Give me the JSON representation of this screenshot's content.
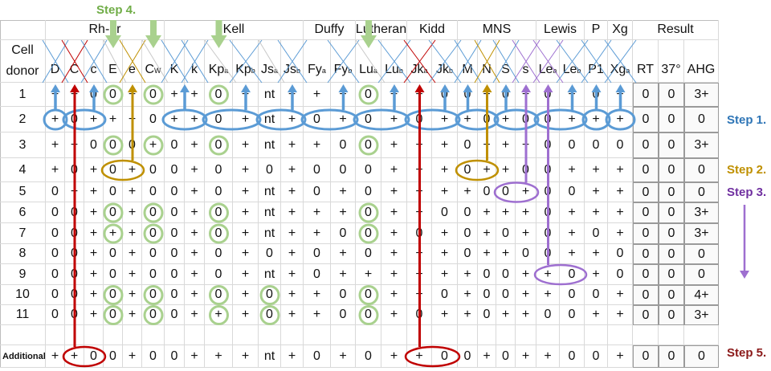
{
  "steps": [
    {
      "label": "Step 4.",
      "color": "#70ad47"
    },
    {
      "label": "Step 1.",
      "color": "#2e75b6"
    },
    {
      "label": "Step 2.",
      "color": "#bf9000"
    },
    {
      "label": "Step 3.",
      "color": "#7030a0"
    },
    {
      "label": "Step 5.",
      "color": "#8b1a1a"
    }
  ],
  "colors": {
    "blue": "#5b9bd5",
    "green": "#a9d18e",
    "gold": "#bf9000",
    "purple": "#9e6fd0",
    "red": "#c00000",
    "grey": "#c8c8c8"
  },
  "donor_header": [
    "Cell",
    "donor"
  ],
  "groups": [
    {
      "label": "Rh-hr",
      "from": 0,
      "to": 5
    },
    {
      "label": "Kell",
      "from": 6,
      "to": 11
    },
    {
      "label": "Duffy",
      "from": 12,
      "to": 13
    },
    {
      "label": "Lutheran",
      "from": 14,
      "to": 15
    },
    {
      "label": "Kidd",
      "from": 16,
      "to": 17
    },
    {
      "label": "MNS",
      "from": 18,
      "to": 21
    },
    {
      "label": "Lewis",
      "from": 22,
      "to": 23
    },
    {
      "label": "P",
      "from": 24,
      "to": 24
    },
    {
      "label": "Xg",
      "from": 25,
      "to": 25
    },
    {
      "label": "Result",
      "from": 26,
      "to": 28
    }
  ],
  "antigens": [
    {
      "base": "D",
      "sup": "",
      "cross": "blue"
    },
    {
      "base": "C",
      "sup": "",
      "cross": "red"
    },
    {
      "base": "c",
      "sup": "",
      "cross": "blue"
    },
    {
      "base": "E",
      "sup": "",
      "cross": "grey"
    },
    {
      "base": "e",
      "sup": "",
      "cross": "gold"
    },
    {
      "base": "C",
      "sup": "W",
      "cross": "grey"
    },
    {
      "base": "K",
      "sup": "",
      "cross": "blue"
    },
    {
      "base": "k",
      "sup": "",
      "cross": "blue"
    },
    {
      "base": "Kp",
      "sup": "a",
      "cross": "grey"
    },
    {
      "base": "Kp",
      "sup": "b",
      "cross": "blue"
    },
    {
      "base": "Js",
      "sup": "a",
      "cross": "grey"
    },
    {
      "base": "Js",
      "sup": "b",
      "cross": "blue"
    },
    {
      "base": "Fy",
      "sup": "a",
      "cross": ""
    },
    {
      "base": "Fy",
      "sup": "b",
      "cross": "blue"
    },
    {
      "base": "Lu",
      "sup": "a",
      "cross": "grey"
    },
    {
      "base": "Lu",
      "sup": "b",
      "cross": "blue"
    },
    {
      "base": "Jk",
      "sup": "a",
      "cross": "red"
    },
    {
      "base": "Jk",
      "sup": "b",
      "cross": "blue"
    },
    {
      "base": "M",
      "sup": "",
      "cross": "blue"
    },
    {
      "base": "N",
      "sup": "",
      "cross": "gold"
    },
    {
      "base": "S",
      "sup": "",
      "cross": "blue"
    },
    {
      "base": "s",
      "sup": "",
      "cross": "purple"
    },
    {
      "base": "Le",
      "sup": "a",
      "cross": "purple"
    },
    {
      "base": "Le",
      "sup": "b",
      "cross": "blue"
    },
    {
      "base": "P1",
      "sup": "",
      "cross": "blue"
    },
    {
      "base": "Xg",
      "sup": "a",
      "cross": "blue"
    }
  ],
  "result_headers": [
    "RT",
    "37°",
    "AHG"
  ],
  "rows": [
    {
      "donor": "1",
      "cells": [
        "+",
        "+",
        "0",
        "0",
        "+",
        "0",
        "+",
        "+",
        "0",
        "+",
        "nt",
        "+",
        "+",
        "+",
        "0",
        "+",
        "+",
        "0",
        "0",
        "+",
        "0",
        "+",
        "0",
        "+",
        "0",
        "+"
      ],
      "results": [
        "0",
        "0",
        "3+"
      ]
    },
    {
      "donor": "2",
      "cells": [
        "+",
        "0",
        "+",
        "+",
        "+",
        "0",
        "+",
        "+",
        "0",
        "+",
        "nt",
        "+",
        "0",
        "+",
        "0",
        "+",
        "0",
        "+",
        "+",
        "0",
        "+",
        "0",
        "0",
        "+",
        "+",
        "+"
      ],
      "results": [
        "0",
        "0",
        "0"
      ]
    },
    {
      "donor": "3",
      "cells": [
        "+",
        "+",
        "0",
        "0",
        "0",
        "+",
        "0",
        "+",
        "0",
        "+",
        "nt",
        "+",
        "+",
        "0",
        "0",
        "+",
        "+",
        "+",
        "0",
        "+",
        "+",
        "+",
        "0",
        "0",
        "0",
        "0"
      ],
      "results": [
        "0",
        "0",
        "3+"
      ]
    },
    {
      "donor": "4",
      "cells": [
        "+",
        "0",
        "+",
        "0",
        "+",
        "0",
        "0",
        "+",
        "0",
        "+",
        "0",
        "+",
        "0",
        "0",
        "0",
        "+",
        "+",
        "+",
        "0",
        "+",
        "+",
        "0",
        "0",
        "+",
        "+",
        "+"
      ],
      "results": [
        "0",
        "0",
        "0"
      ]
    },
    {
      "donor": "5",
      "cells": [
        "0",
        "+",
        "+",
        "0",
        "+",
        "0",
        "0",
        "+",
        "0",
        "+",
        "nt",
        "+",
        "0",
        "+",
        "0",
        "+",
        "+",
        "+",
        "+",
        "0",
        "0",
        "+",
        "0",
        "0",
        "+",
        "+"
      ],
      "results": [
        "0",
        "0",
        "0"
      ]
    },
    {
      "donor": "6",
      "cells": [
        "0",
        "0",
        "+",
        "0",
        "+",
        "0",
        "0",
        "+",
        "0",
        "+",
        "nt",
        "+",
        "+",
        "+",
        "0",
        "+",
        "+",
        "0",
        "0",
        "+",
        "+",
        "+",
        "0",
        "+",
        "+",
        "+"
      ],
      "results": [
        "0",
        "0",
        "3+"
      ]
    },
    {
      "donor": "7",
      "cells": [
        "0",
        "0",
        "+",
        "+",
        "+",
        "0",
        "0",
        "+",
        "0",
        "+",
        "nt",
        "+",
        "+",
        "0",
        "0",
        "+",
        "0",
        "+",
        "0",
        "+",
        "0",
        "+",
        "0",
        "+",
        "0",
        "+"
      ],
      "results": [
        "0",
        "0",
        "3+"
      ]
    },
    {
      "donor": "8",
      "cells": [
        "0",
        "0",
        "+",
        "0",
        "+",
        "0",
        "0",
        "+",
        "0",
        "+",
        "0",
        "+",
        "0",
        "+",
        "0",
        "+",
        "+",
        "+",
        "0",
        "+",
        "+",
        "0",
        "0",
        "+",
        "+",
        "0"
      ],
      "results": [
        "0",
        "0",
        "0"
      ]
    },
    {
      "donor": "9",
      "cells": [
        "0",
        "0",
        "+",
        "0",
        "+",
        "0",
        "0",
        "+",
        "0",
        "+",
        "nt",
        "+",
        "0",
        "+",
        "+",
        "+",
        "+",
        "+",
        "+",
        "0",
        "0",
        "+",
        "+",
        "0",
        "+",
        "0"
      ],
      "results": [
        "0",
        "0",
        "0"
      ]
    },
    {
      "donor": "10",
      "cells": [
        "0",
        "0",
        "+",
        "0",
        "+",
        "0",
        "0",
        "+",
        "0",
        "+",
        "0",
        "+",
        "+",
        "0",
        "0",
        "+",
        "+",
        "0",
        "+",
        "0",
        "0",
        "+",
        "+",
        "0",
        "0",
        "+"
      ],
      "results": [
        "0",
        "0",
        "4+"
      ]
    },
    {
      "donor": "11",
      "cells": [
        "0",
        "0",
        "+",
        "0",
        "+",
        "0",
        "0",
        "+",
        "+",
        "+",
        "0",
        "+",
        "+",
        "0",
        "0",
        "+",
        "0",
        "+",
        "+",
        "0",
        "+",
        "+",
        "0",
        "0",
        "+",
        "+"
      ],
      "results": [
        "0",
        "0",
        "3+"
      ]
    },
    {
      "donor": "",
      "cells": [],
      "results": []
    },
    {
      "donor": "Additional",
      "cells": [
        "+",
        "+",
        "0",
        "0",
        "+",
        "0",
        "0",
        "+",
        "+",
        "+",
        "nt",
        "+",
        "0",
        "+",
        "0",
        "+",
        "+",
        "0",
        "0",
        "+",
        "0",
        "+",
        "+",
        "0",
        "0",
        "+"
      ],
      "results": [
        "0",
        "0",
        "0"
      ]
    }
  ],
  "annotations": {
    "green_circles": [
      [
        0,
        3
      ],
      [
        0,
        5
      ],
      [
        0,
        8
      ],
      [
        0,
        14
      ],
      [
        2,
        3
      ],
      [
        2,
        5
      ],
      [
        2,
        8
      ],
      [
        2,
        14
      ],
      [
        5,
        3
      ],
      [
        5,
        5
      ],
      [
        5,
        8
      ],
      [
        5,
        14
      ],
      [
        6,
        3
      ],
      [
        6,
        5
      ],
      [
        6,
        8
      ],
      [
        6,
        14
      ],
      [
        9,
        3
      ],
      [
        9,
        5
      ],
      [
        9,
        8
      ],
      [
        9,
        10
      ],
      [
        9,
        14
      ],
      [
        10,
        3
      ],
      [
        10,
        5
      ],
      [
        10,
        8
      ],
      [
        10,
        10
      ],
      [
        10,
        14
      ]
    ],
    "green_arrows": [
      3,
      5,
      8,
      14
    ],
    "ellipses": [
      {
        "row": 1,
        "from": 0,
        "to": 0,
        "color": "blue",
        "arrow_to": [
          0
        ]
      },
      {
        "row": 1,
        "from": 1,
        "to": 2,
        "color": "blue",
        "arrow_to": [
          2
        ]
      },
      {
        "row": 1,
        "from": 6,
        "to": 7,
        "color": "blue",
        "arrow_to": [
          6.5
        ]
      },
      {
        "row": 1,
        "from": 8,
        "to": 9,
        "color": "blue",
        "arrow_to": [
          9
        ]
      },
      {
        "row": 1,
        "from": 10,
        "to": 11,
        "color": "blue",
        "arrow_to": [
          11
        ]
      },
      {
        "row": 1,
        "from": 12,
        "to": 13,
        "color": "blue",
        "arrow_to": [
          13
        ]
      },
      {
        "row": 1,
        "from": 14,
        "to": 15,
        "color": "blue",
        "arrow_to": [
          15
        ]
      },
      {
        "row": 1,
        "from": 16,
        "to": 17,
        "color": "blue",
        "arrow_to": [
          17
        ]
      },
      {
        "row": 1,
        "from": 18,
        "to": 19,
        "color": "blue",
        "arrow_to": [
          18
        ]
      },
      {
        "row": 1,
        "from": 20,
        "to": 21,
        "color": "blue",
        "arrow_to": [
          20
        ]
      },
      {
        "row": 1,
        "from": 22,
        "to": 23,
        "color": "blue",
        "arrow_to": [
          23
        ]
      },
      {
        "row": 1,
        "from": 24,
        "to": 24,
        "color": "blue",
        "arrow_to": [
          24
        ]
      },
      {
        "row": 1,
        "from": 25,
        "to": 25,
        "color": "blue",
        "arrow_to": [
          25
        ]
      },
      {
        "row": 3,
        "from": 3,
        "to": 4,
        "color": "gold",
        "arrow_to": [
          4
        ]
      },
      {
        "row": 3,
        "from": 18,
        "to": 19,
        "color": "gold",
        "arrow_to": [
          19
        ]
      },
      {
        "row": 4,
        "from": 20,
        "to": 21,
        "color": "purple",
        "arrow_to": [
          21
        ]
      },
      {
        "row": 8,
        "from": 22,
        "to": 23,
        "color": "purple",
        "arrow_to": [
          22
        ]
      },
      {
        "row": 12,
        "from": 1,
        "to": 2,
        "color": "red",
        "arrow_to": [
          1
        ]
      },
      {
        "row": 12,
        "from": 16,
        "to": 17,
        "color": "red",
        "arrow_to": [
          16
        ]
      }
    ]
  }
}
